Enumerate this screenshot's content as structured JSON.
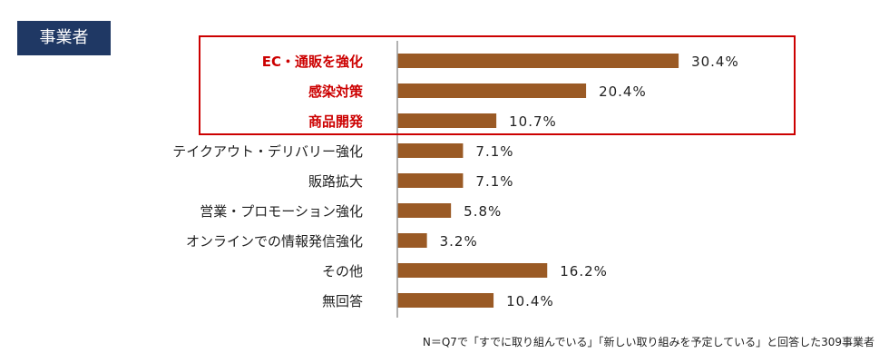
{
  "badge": {
    "label": "事業者",
    "color": "#1f3864"
  },
  "colors": {
    "bar": "#9a5a25",
    "highlight_text": "#cc0000",
    "highlight_box": "#cc0000",
    "axis": "#999999"
  },
  "footnote": "N＝Q7で「すでに取り組んでいる」「新しい取り組みを予定している」と回答した309事業者",
  "chart_data": {
    "type": "bar",
    "orientation": "horizontal",
    "categories": [
      "EC・通販を強化",
      "感染対策",
      "商品開発",
      "テイクアウト・デリバリー強化",
      "販路拡大",
      "営業・プロモーション強化",
      "オンラインでの情報発信強化",
      "その他",
      "無回答"
    ],
    "values": [
      30.4,
      20.4,
      10.7,
      7.1,
      7.1,
      5.8,
      3.2,
      16.2,
      10.4
    ],
    "value_labels": [
      "30.4%",
      "20.4%",
      "10.7%",
      "7.1%",
      "7.1%",
      "5.8%",
      "3.2%",
      "16.2%",
      "10.4%"
    ],
    "highlighted": [
      true,
      true,
      true,
      false,
      false,
      false,
      false,
      false,
      false
    ],
    "unit": "%",
    "xlim": [
      0,
      50
    ],
    "grid": false,
    "legend": "none"
  }
}
